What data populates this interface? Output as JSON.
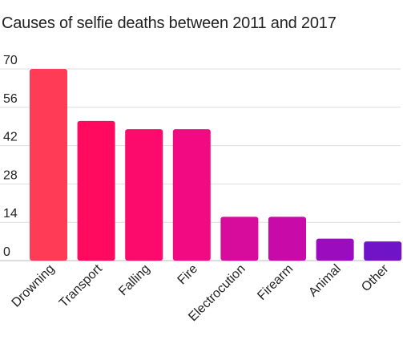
{
  "chart_data": {
    "type": "bar",
    "title": "Causes of selfie deaths between 2011 and 2017",
    "xlabel": "",
    "ylabel": "",
    "categories": [
      "Drowning",
      "Transport",
      "Falling",
      "Fire",
      "Electrocution",
      "Firearm",
      "Animal",
      "Other"
    ],
    "values": [
      70,
      51,
      48,
      48,
      16,
      16,
      8,
      7
    ],
    "yticks": [
      0,
      14,
      28,
      42,
      56,
      70
    ],
    "ylim": [
      0,
      70
    ],
    "grid": true,
    "legend": "none",
    "colors": [
      "#ff3b55",
      "#ff0a5f",
      "#fc0a6c",
      "#f20a82",
      "#d80c9c",
      "#c80aa8",
      "#9a0cbe",
      "#7014c8"
    ]
  }
}
